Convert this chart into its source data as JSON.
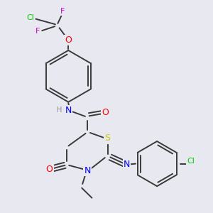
{
  "bg_color": "#e8e8f0",
  "bond_color": "#3a3a3a",
  "colors": {
    "N": "#0000ff",
    "O": "#ff0000",
    "S": "#cccc00",
    "Cl": "#00cc00",
    "F": "#cc00cc",
    "H": "#888888",
    "C": "#3a3a3a"
  },
  "lw": 1.4
}
